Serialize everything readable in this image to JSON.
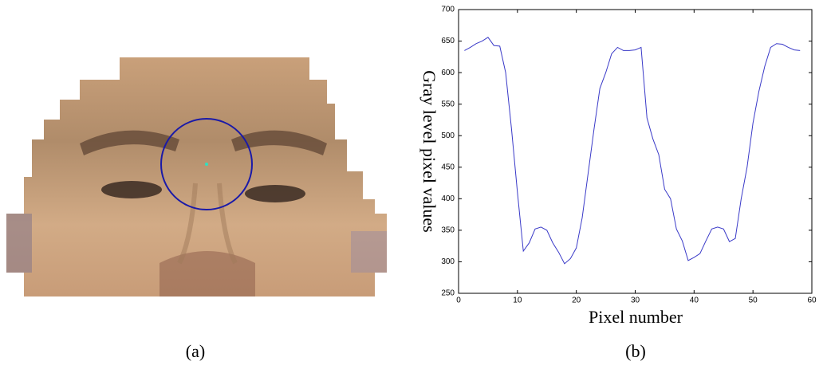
{
  "chart_data": {
    "type": "line",
    "xlabel": "Pixel number",
    "ylabel": "Gray level pixel values",
    "x": [
      1,
      2,
      3,
      4,
      5,
      6,
      7,
      8,
      9,
      10,
      11,
      12,
      13,
      14,
      15,
      16,
      17,
      18,
      19,
      20,
      21,
      22,
      23,
      24,
      25,
      26,
      27,
      28,
      29,
      30,
      31,
      32,
      33,
      34,
      35,
      36,
      37,
      38,
      39,
      40,
      41,
      42,
      43,
      44,
      45,
      46,
      47,
      48,
      49,
      50,
      51,
      52,
      53,
      54,
      55,
      56,
      57,
      58
    ],
    "series": [
      {
        "color": "#3a3ac8",
        "values": [
          635,
          640,
          646,
          650,
          656,
          643,
          642,
          600,
          510,
          410,
          317,
          330,
          352,
          355,
          350,
          330,
          315,
          297,
          305,
          322,
          370,
          440,
          510,
          575,
          600,
          630,
          640,
          635,
          635,
          636,
          640,
          528,
          495,
          470,
          415,
          400,
          352,
          333,
          302,
          307,
          313,
          333,
          352,
          355,
          352,
          332,
          337,
          400,
          450,
          520,
          570,
          610,
          640,
          646,
          645,
          640,
          636,
          635
        ]
      }
    ],
    "xlim": [
      0,
      60
    ],
    "xticks": [
      0,
      10,
      20,
      30,
      40,
      50,
      60
    ],
    "ylim": [
      250,
      700
    ],
    "yticks": [
      250,
      300,
      350,
      400,
      450,
      500,
      550,
      600,
      650,
      700
    ]
  },
  "panels": [
    "(a)",
    "(b)"
  ]
}
